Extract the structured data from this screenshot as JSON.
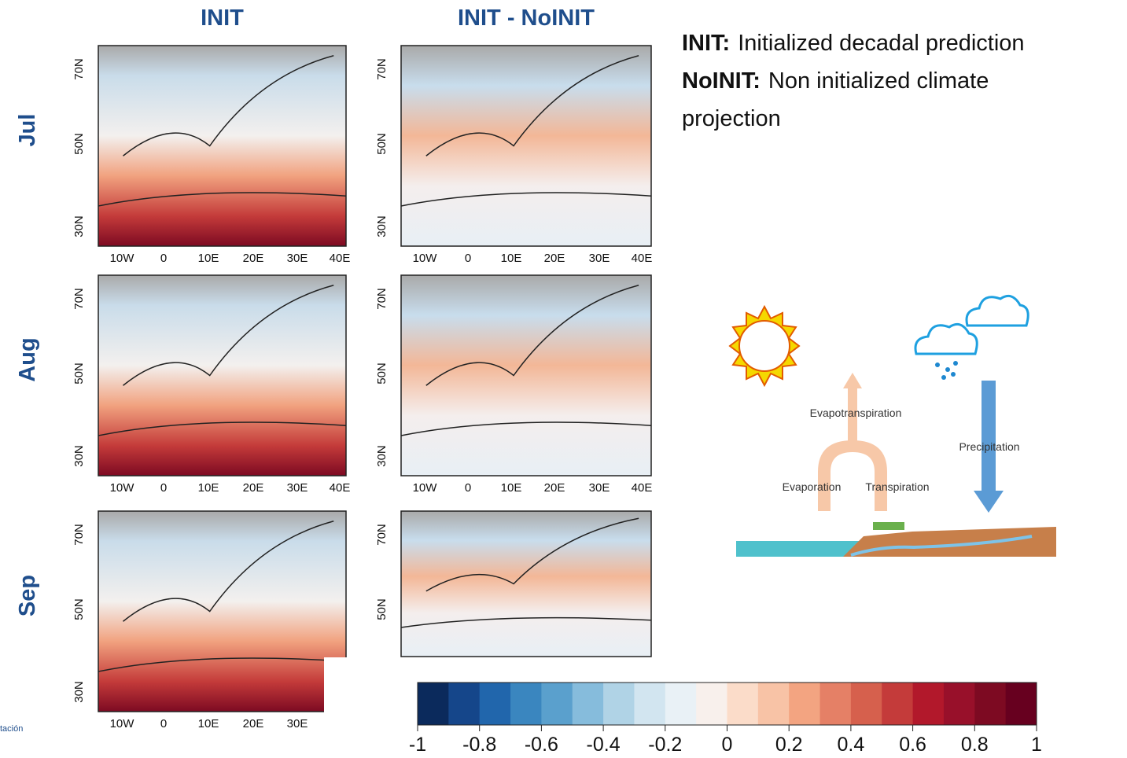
{
  "column_titles": [
    "INIT",
    "INIT - NoINIT"
  ],
  "row_labels": [
    "Jul",
    "Aug",
    "Sep"
  ],
  "legend": [
    {
      "term": "INIT:",
      "text": "Initialized decadal prediction"
    },
    {
      "term": "NoINIT:",
      "text": "Non initialized climate projection"
    }
  ],
  "map_axes": {
    "lat_labels": [
      "70N",
      "50N",
      "30N"
    ],
    "lon_labels": [
      "10W",
      "0",
      "10E",
      "20E",
      "30E",
      "40E"
    ]
  },
  "diagram": {
    "evapotranspiration": "Evapotranspiration",
    "precipitation": "Precipitation",
    "evaporation": "Evaporation",
    "transpiration": "Transpiration"
  },
  "colorbar": {
    "limits": [
      -1,
      1
    ],
    "ticks": [
      -1,
      -0.8,
      -0.6,
      -0.4,
      -0.2,
      0,
      0.2,
      0.4,
      0.6,
      0.8,
      1
    ],
    "colors": [
      "#0b2a5c",
      "#15468a",
      "#2166ac",
      "#3a86bf",
      "#5aa0cd",
      "#86bcdc",
      "#b0d3e6",
      "#d2e5f0",
      "#e9f1f6",
      "#f8f0ec",
      "#fbdcc9",
      "#f8c3a6",
      "#f3a481",
      "#e58066",
      "#d6604d",
      "#c43b3a",
      "#b2182b",
      "#98102a",
      "#7d0a22",
      "#67001f"
    ]
  },
  "logo_text": "tación"
}
